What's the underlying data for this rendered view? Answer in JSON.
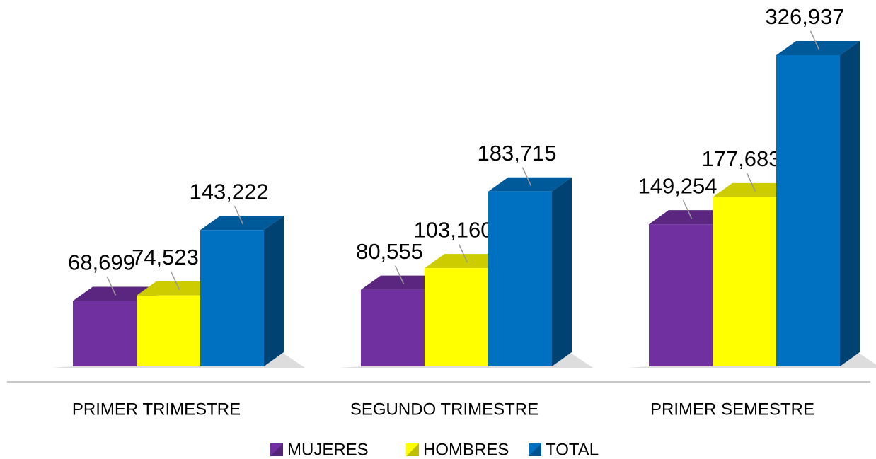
{
  "chart_data": {
    "type": "bar3d",
    "categories": [
      "PRIMER TRIMESTRE",
      "SEGUNDO TRIMESTRE",
      "PRIMER SEMESTRE"
    ],
    "series": [
      {
        "name": "MUJERES",
        "color": "#7030a0",
        "values": [
          68699,
          80555,
          149254
        ],
        "value_labels": [
          "68,699",
          "80,555",
          "149,254"
        ]
      },
      {
        "name": "HOMBRES",
        "color": "#ffff00",
        "values": [
          74523,
          103160,
          177683
        ],
        "value_labels": [
          "74,523",
          "103,160",
          "177,683"
        ]
      },
      {
        "name": "TOTAL",
        "color": "#0070c0",
        "values": [
          143222,
          183715,
          326937
        ],
        "value_labels": [
          "143,222",
          "183,715",
          "326,937"
        ]
      }
    ],
    "legend": "bottom"
  }
}
